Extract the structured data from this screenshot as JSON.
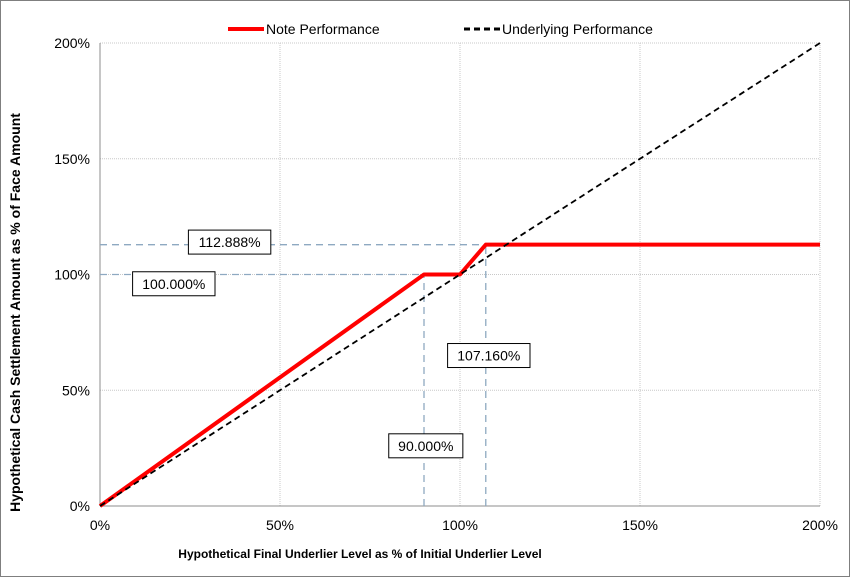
{
  "chart_data": {
    "type": "line",
    "xlabel": "Hypothetical Final Underlier Level as % of Initial Underlier Level",
    "ylabel": "Hypothetical Cash Settlement Amount as % of Face Amount",
    "xlim": [
      0,
      200
    ],
    "ylim": [
      0,
      200
    ],
    "x_ticks": [
      0,
      50,
      100,
      150,
      200
    ],
    "y_ticks": [
      0,
      50,
      100,
      150,
      200
    ],
    "x_tick_labels": [
      "0%",
      "50%",
      "100%",
      "150%",
      "200%"
    ],
    "y_tick_labels": [
      "0%",
      "50%",
      "100%",
      "150%",
      "200%"
    ],
    "grid": true,
    "legend_position": "top-center",
    "series": [
      {
        "name": "Note Performance",
        "style": "solid",
        "color": "#ff0000",
        "x": [
          0,
          90,
          100,
          107.16,
          200
        ],
        "y": [
          0,
          100,
          100,
          112.888,
          112.888
        ]
      },
      {
        "name": "Underlying Performance",
        "style": "dashed",
        "color": "#000000",
        "x": [
          0,
          200
        ],
        "y": [
          0,
          200
        ]
      }
    ],
    "reference_lines": [
      {
        "orientation": "horizontal",
        "value": 100,
        "from": 0,
        "to": 90
      },
      {
        "orientation": "horizontal",
        "value": 112.888,
        "from": 0,
        "to": 107.16
      },
      {
        "orientation": "vertical",
        "value": 90,
        "from": 0,
        "to": 100
      },
      {
        "orientation": "vertical",
        "value": 107.16,
        "from": 0,
        "to": 112.888
      }
    ],
    "annotations": [
      {
        "id": "ann-112888",
        "text": "112.888%",
        "x": 36,
        "y": 114
      },
      {
        "id": "ann-100000",
        "text": "100.000%",
        "x": 20.5,
        "y": 96
      },
      {
        "id": "ann-107160",
        "text": "107.160%",
        "x": 108,
        "y": 65
      },
      {
        "id": "ann-90000",
        "text": "90.000%",
        "x": 90.5,
        "y": 26
      }
    ],
    "ref_line_color": "#8ea9c1",
    "grid_color": "#c8c8c8"
  }
}
